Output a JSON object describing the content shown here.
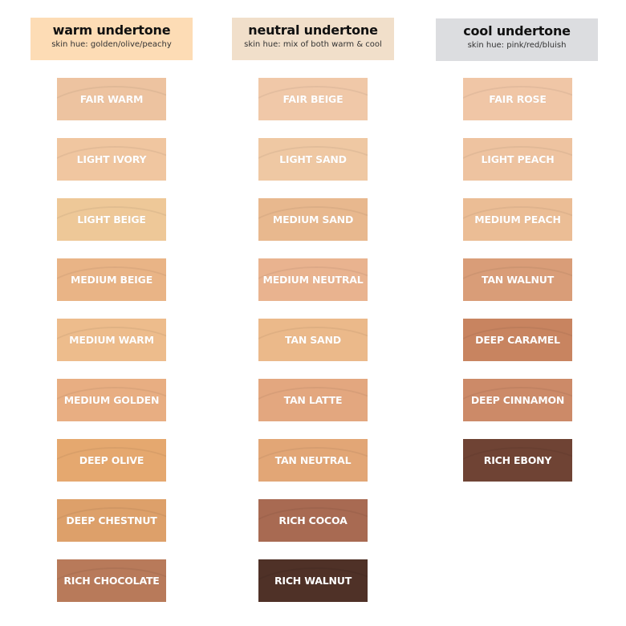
{
  "columns": [
    {
      "title": "warm undertone",
      "subtitle": "skin hue: golden/olive/peachy",
      "header_color": "#fddcb5",
      "shades": [
        {
          "name": "FAIR WARM",
          "color": "#edc3a0"
        },
        {
          "name": "LIGHT IVORY",
          "color": "#f0c6a0"
        },
        {
          "name": "LIGHT BEIGE",
          "color": "#eec898"
        },
        {
          "name": "MEDIUM BEIGE",
          "color": "#e9b486"
        },
        {
          "name": "MEDIUM WARM",
          "color": "#edbc8c"
        },
        {
          "name": "MEDIUM GOLDEN",
          "color": "#e8ae82"
        },
        {
          "name": "DEEP OLIVE",
          "color": "#e5a86f"
        },
        {
          "name": "DEEP CHESTNUT",
          "color": "#dda06a"
        },
        {
          "name": "RICH CHOCOLATE",
          "color": "#b87a5a"
        }
      ]
    },
    {
      "title": "neutral undertone",
      "subtitle": "skin hue: mix of both warm & cool",
      "header_color": "#f1dfca",
      "shades": [
        {
          "name": "FAIR BEIGE",
          "color": "#f0c8a8"
        },
        {
          "name": "LIGHT SAND",
          "color": "#efc8a3"
        },
        {
          "name": "MEDIUM SAND",
          "color": "#e8b88e"
        },
        {
          "name": "MEDIUM NEUTRAL",
          "color": "#e9b38f"
        },
        {
          "name": "TAN SAND",
          "color": "#ebb98a"
        },
        {
          "name": "TAN LATTE",
          "color": "#e3a77f"
        },
        {
          "name": "TAN NEUTRAL",
          "color": "#e2a676"
        },
        {
          "name": "RICH COCOA",
          "color": "#a86a52"
        },
        {
          "name": "RICH WALNUT",
          "color": "#4f3127"
        }
      ]
    },
    {
      "title": "cool undertone",
      "subtitle": "skin hue: pink/red/bluish",
      "header_color": "#dcdde0",
      "shades": [
        {
          "name": "FAIR ROSE",
          "color": "#f0c6a6"
        },
        {
          "name": "LIGHT PEACH",
          "color": "#eec3a0"
        },
        {
          "name": "MEDIUM PEACH",
          "color": "#ebbd95"
        },
        {
          "name": "TAN WALNUT",
          "color": "#d99d78"
        },
        {
          "name": "DEEP CARAMEL",
          "color": "#c88460"
        },
        {
          "name": "DEEP CINNAMON",
          "color": "#cc8a68"
        },
        {
          "name": "RICH EBONY",
          "color": "#6f4334"
        }
      ]
    }
  ]
}
